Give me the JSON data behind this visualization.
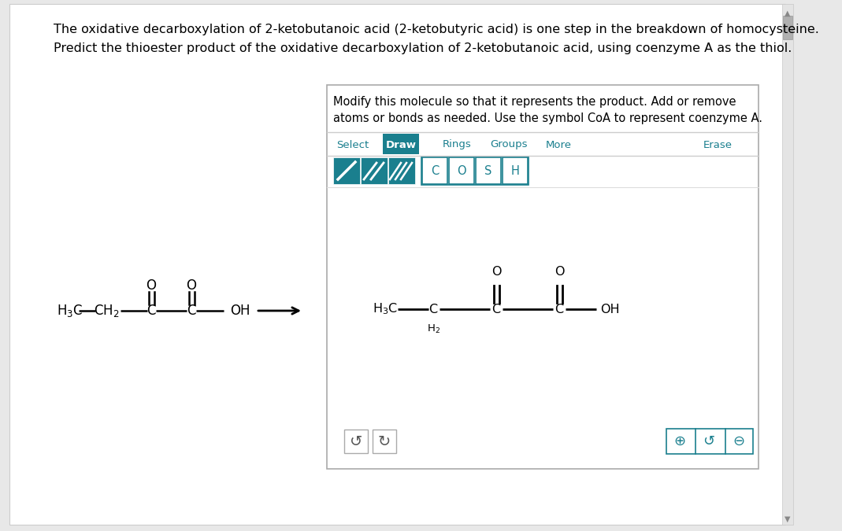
{
  "bg_color": "#e8e8e8",
  "page_bg": "#ffffff",
  "title_line1": "The oxidative decarboxylation of 2-ketobutanoic acid (2-ketobutyric acid) is one step in the breakdown of homocysteine.",
  "title_line2": "Predict the thioester product of the oxidative decarboxylation of 2-ketobutanoic acid, using coenzyme A as the thiol.",
  "box_text_line1": "Modify this molecule so that it represents the product. Add or remove",
  "box_text_line2": "atoms or bonds as needed. Use the symbol CoA to represent coenzyme A.",
  "toolbar_items": [
    "Select",
    "Draw",
    "Rings",
    "Groups",
    "More",
    "Erase"
  ],
  "toolbar_active": "Draw",
  "toolbar_active_color": "#1a7f8e",
  "toolbar_text_color": "#1a7f8e",
  "atom_buttons": [
    "C",
    "O",
    "S",
    "H"
  ],
  "box_border_color": "#888888",
  "text_color": "#000000",
  "scrollbar_bg": "#d0d0d0",
  "scrollbar_thumb": "#a0a0a0"
}
